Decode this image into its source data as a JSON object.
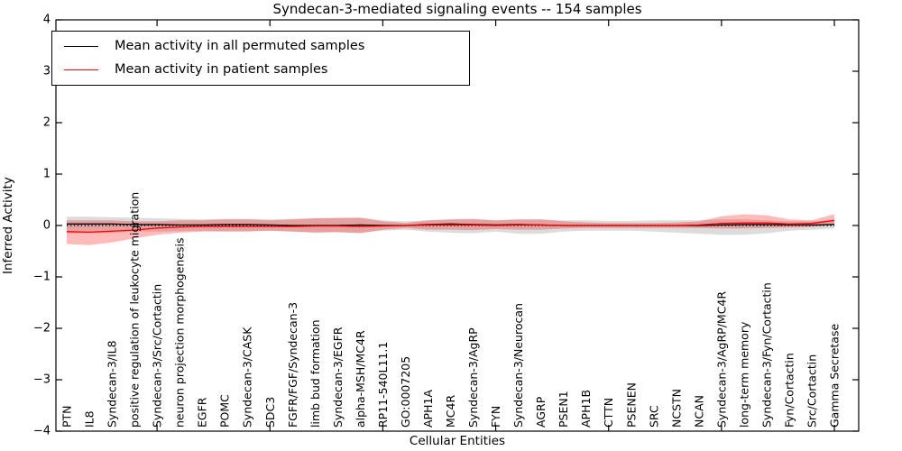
{
  "chart_data": {
    "type": "line",
    "title": "Syndecan-3-mediated signaling events -- 154 samples",
    "xlabel": "Cellular Entities",
    "ylabel": "Inferred Activity",
    "ylim": [
      -4,
      4
    ],
    "yticks": [
      4,
      3,
      2,
      1,
      0,
      -1,
      -2,
      -3,
      -4
    ],
    "ytick_labels": [
      "4",
      "3",
      "2",
      "1",
      "0",
      "−1",
      "−2",
      "−3",
      "−4"
    ],
    "x_major_tick_indices": [
      4,
      9,
      14,
      19,
      24,
      29,
      34
    ],
    "grid": false,
    "legend_position": "upper left",
    "reference_line": {
      "y": 0,
      "style": "dotted",
      "color": "#000000"
    },
    "categories": [
      "PTN",
      "IL8",
      "Syndecan-3/IL8",
      "positive regulation of leukocyte migration",
      "Syndecan-3/Src/Cortactin",
      "neuron projection morphogenesis",
      "EGFR",
      "POMC",
      "Syndecan-3/CASK",
      "SDC3",
      "FGFR/FGF/Syndecan-3",
      "limb bud formation",
      "Syndecan-3/EGFR",
      "alpha-MSH/MC4R",
      "RP11-540L11.1",
      "GO:0007205",
      "APH1A",
      "MC4R",
      "Syndecan-3/AgRP",
      "FYN",
      "Syndecan-3/Neurocan",
      "AGRP",
      "PSEN1",
      "APH1B",
      "CTTN",
      "PSENEN",
      "SRC",
      "NCSTN",
      "NCAN",
      "Syndecan-3/AgRP/MC4R",
      "long-term memory",
      "Syndecan-3/Fyn/Cortactin",
      "Fyn/Cortactin",
      "Src/Cortactin",
      "Gamma Secretase"
    ],
    "series": [
      {
        "name": "Mean activity in all permuted samples",
        "color": "#000000",
        "band_color": "rgba(128,128,128,0.28)",
        "values": [
          0.03,
          0.03,
          0.03,
          0.02,
          0.02,
          0.01,
          0.01,
          0.02,
          0.02,
          0.01,
          0.0,
          0.0,
          0.0,
          0.01,
          0.0,
          0.0,
          0.02,
          0.03,
          0.02,
          0.01,
          0.02,
          0.01,
          0.0,
          0.0,
          0.0,
          0.0,
          0.0,
          0.0,
          0.0,
          0.01,
          0.02,
          0.02,
          0.01,
          0.01,
          0.02
        ],
        "band_upper": [
          0.17,
          0.17,
          0.16,
          0.15,
          0.14,
          0.13,
          0.12,
          0.13,
          0.13,
          0.12,
          0.13,
          0.14,
          0.14,
          0.15,
          0.1,
          0.08,
          0.1,
          0.12,
          0.12,
          0.1,
          0.12,
          0.12,
          0.1,
          0.1,
          0.09,
          0.09,
          0.1,
          0.1,
          0.1,
          0.12,
          0.12,
          0.1,
          0.08,
          0.08,
          0.1
        ],
        "band_lower": [
          -0.15,
          -0.15,
          -0.14,
          -0.12,
          -0.12,
          -0.11,
          -0.1,
          -0.11,
          -0.11,
          -0.1,
          -0.12,
          -0.13,
          -0.13,
          -0.14,
          -0.1,
          -0.08,
          -0.12,
          -0.14,
          -0.15,
          -0.12,
          -0.16,
          -0.16,
          -0.12,
          -0.1,
          -0.1,
          -0.1,
          -0.12,
          -0.14,
          -0.16,
          -0.18,
          -0.18,
          -0.15,
          -0.1,
          -0.08,
          -0.06
        ]
      },
      {
        "name": "Mean activity in patient samples",
        "color": "#ff0000",
        "band_color": "rgba(255,0,0,0.27)",
        "values": [
          -0.12,
          -0.13,
          -0.11,
          -0.09,
          -0.05,
          -0.03,
          -0.02,
          -0.02,
          -0.02,
          -0.02,
          -0.02,
          -0.01,
          -0.01,
          -0.02,
          -0.01,
          0.0,
          0.01,
          0.01,
          0.01,
          0.0,
          0.01,
          0.01,
          0.0,
          0.0,
          0.0,
          0.0,
          0.0,
          0.0,
          0.01,
          0.04,
          0.05,
          0.05,
          0.03,
          0.04,
          0.1
        ],
        "band_upper": [
          0.1,
          0.1,
          0.1,
          0.08,
          0.08,
          0.1,
          0.1,
          0.12,
          0.12,
          0.1,
          0.12,
          0.14,
          0.15,
          0.15,
          0.08,
          0.05,
          0.1,
          0.12,
          0.13,
          0.1,
          0.12,
          0.12,
          0.08,
          0.06,
          0.05,
          0.05,
          0.05,
          0.06,
          0.08,
          0.18,
          0.22,
          0.2,
          0.12,
          0.1,
          0.22
        ],
        "band_lower": [
          -0.36,
          -0.38,
          -0.33,
          -0.25,
          -0.18,
          -0.14,
          -0.12,
          -0.12,
          -0.12,
          -0.1,
          -0.12,
          -0.14,
          -0.13,
          -0.15,
          -0.08,
          -0.05,
          -0.08,
          -0.08,
          -0.09,
          -0.07,
          -0.08,
          -0.08,
          -0.06,
          -0.05,
          -0.05,
          -0.05,
          -0.05,
          -0.05,
          -0.05,
          -0.06,
          -0.06,
          -0.05,
          -0.04,
          -0.03,
          0.02
        ]
      }
    ]
  }
}
